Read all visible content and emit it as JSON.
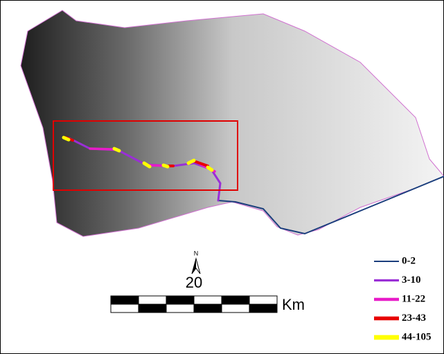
{
  "map": {
    "north": "N",
    "scale": {
      "distance": "20",
      "unit": "Km"
    },
    "legend": [
      {
        "name": "0-2",
        "color": "#1a3d7c"
      },
      {
        "name": "3-10",
        "color": "#9a2fd6"
      },
      {
        "name": "11-22",
        "color": "#e81cc8"
      },
      {
        "name": "23-43",
        "color": "#e80000"
      },
      {
        "name": "44-105",
        "color": "#ffff00"
      }
    ]
  }
}
